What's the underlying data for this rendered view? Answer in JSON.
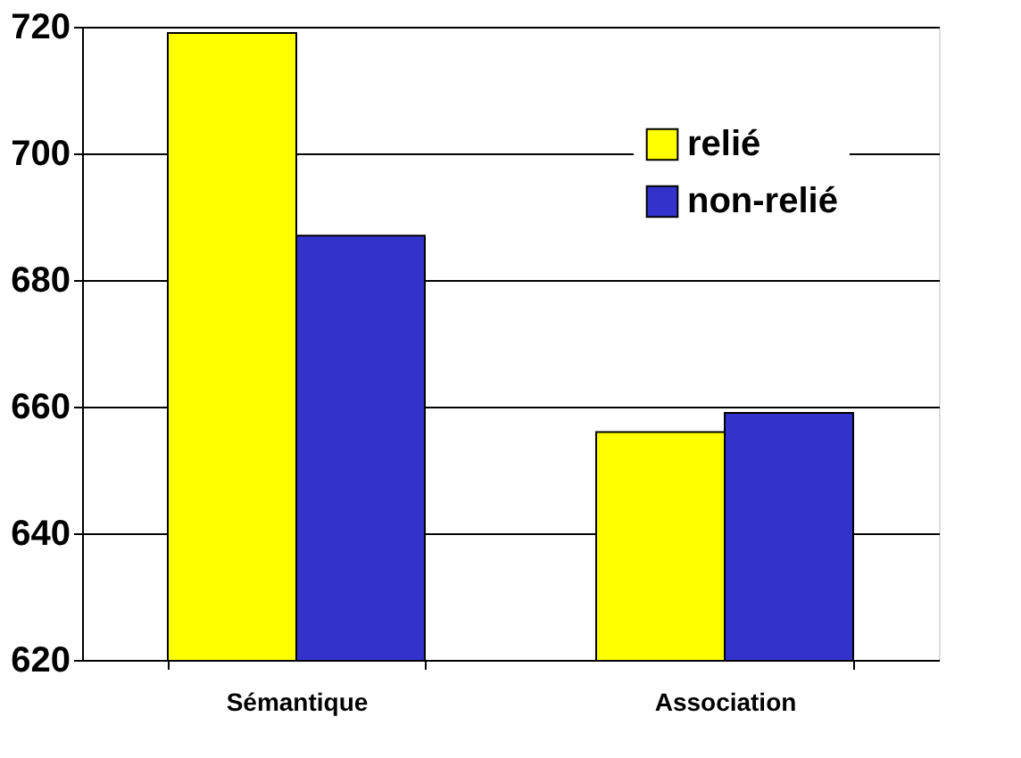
{
  "chart_data": {
    "type": "bar",
    "categories": [
      "Sémantique",
      "Association"
    ],
    "series": [
      {
        "name": "relié",
        "color": "#ffff00",
        "values": [
          719,
          656
        ]
      },
      {
        "name": "non-relié",
        "color": "#3333cc",
        "values": [
          687,
          659
        ]
      }
    ],
    "ylim": [
      620,
      720
    ],
    "yticks": [
      620,
      640,
      660,
      680,
      700,
      720
    ],
    "grid": "y",
    "legend": "top right"
  }
}
